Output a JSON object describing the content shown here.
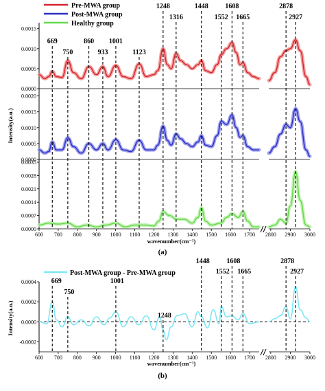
{
  "chart_data": [
    {
      "type": "line",
      "panel": "(a)",
      "legend": [
        {
          "name": "Pre-MWA group",
          "color": "#d6262e"
        },
        {
          "name": "Post-MWA group",
          "color": "#2b2fc2"
        },
        {
          "name": "Healthy group",
          "color": "#63d94a"
        }
      ],
      "xlabel": "wavenumber(cm⁻¹)",
      "ylabel": "Intensity(a.u.)",
      "xticks": [
        "600",
        "700",
        "800",
        "900",
        "1000",
        "1100",
        "1200",
        "1300",
        "1400",
        "1500",
        "1600",
        "1700",
        "2800",
        "2900",
        "3000"
      ],
      "xlim_segments": [
        [
          600,
          1750
        ],
        [
          2790,
          3000
        ]
      ],
      "peaks": [
        669,
        750,
        860,
        933,
        1001,
        1123,
        1248,
        1316,
        1448,
        1552,
        1608,
        1665,
        2878,
        2927
      ],
      "peak_labels": [
        "669",
        "750",
        "860",
        "933",
        "1001",
        "1123",
        "1248",
        "1316",
        "1448",
        "1552",
        "1608",
        "1665",
        "2878",
        "2927"
      ],
      "subplots": [
        {
          "series": "Pre-MWA group",
          "color": "#d6262e",
          "band_color": "#f08f8f",
          "yticks": [
            "0.0015",
            "0.0010",
            "0.0005",
            "0.0000"
          ],
          "ylim": [
            0,
            0.00165
          ],
          "x": [
            600,
            630,
            650,
            669,
            690,
            720,
            750,
            780,
            820,
            860,
            900,
            933,
            960,
            1001,
            1040,
            1080,
            1123,
            1160,
            1200,
            1220,
            1248,
            1270,
            1290,
            1316,
            1340,
            1370,
            1400,
            1430,
            1448,
            1470,
            1500,
            1530,
            1552,
            1580,
            1608,
            1630,
            1650,
            1665,
            1690,
            1720,
            1750
          ],
          "values": [
            0.00035,
            0.00025,
            0.0003,
            0.00043,
            0.0003,
            0.00028,
            0.0007,
            0.0004,
            0.00025,
            0.00055,
            0.00035,
            0.00055,
            0.0003,
            0.00058,
            0.0003,
            0.00025,
            0.00062,
            0.0003,
            0.00035,
            0.00045,
            0.001,
            0.0006,
            0.0005,
            0.00088,
            0.0007,
            0.0006,
            0.0005,
            0.0006,
            0.0007,
            0.00045,
            0.0004,
            0.0006,
            0.00085,
            0.001,
            0.00115,
            0.0009,
            0.0006,
            0.00065,
            0.0004,
            0.0003,
            0.00025
          ],
          "x2": [
            2790,
            2820,
            2850,
            2878,
            2900,
            2927,
            2950,
            2980,
            3000
          ],
          "values2": [
            0.0002,
            0.0004,
            0.0008,
            0.00095,
            0.001,
            0.00122,
            0.00095,
            0.0003,
            0.0001
          ]
        },
        {
          "series": "Post-MWA group",
          "color": "#2b2fc2",
          "band_color": "#8f92ea",
          "yticks": [
            "0.0020",
            "0.0015",
            "0.0010",
            "0.0005",
            "0.0000"
          ],
          "ylim": [
            0,
            0.0021
          ],
          "x": [
            600,
            630,
            650,
            669,
            690,
            720,
            750,
            780,
            820,
            860,
            900,
            933,
            960,
            1001,
            1040,
            1080,
            1123,
            1160,
            1200,
            1220,
            1248,
            1270,
            1290,
            1316,
            1340,
            1370,
            1400,
            1430,
            1448,
            1470,
            1500,
            1530,
            1552,
            1580,
            1608,
            1630,
            1650,
            1665,
            1690,
            1720,
            1750
          ],
          "values": [
            0.0003,
            0.0002,
            0.00025,
            0.00055,
            0.0003,
            0.0003,
            0.00068,
            0.0004,
            0.0002,
            0.0005,
            0.0003,
            0.0005,
            0.0003,
            0.00062,
            0.0003,
            0.00025,
            0.0006,
            0.0003,
            0.0003,
            0.00045,
            0.00105,
            0.0006,
            0.00045,
            0.0008,
            0.00065,
            0.0005,
            0.0004,
            0.00055,
            0.00075,
            0.00045,
            0.0004,
            0.00075,
            0.0012,
            0.0011,
            0.0014,
            0.001,
            0.0007,
            0.00075,
            0.0004,
            0.0003,
            0.0003
          ],
          "x2": [
            2790,
            2820,
            2850,
            2878,
            2900,
            2927,
            2950,
            2980,
            3000
          ],
          "values2": [
            0.0002,
            0.0004,
            0.0008,
            0.0011,
            0.001,
            0.0016,
            0.0012,
            0.0003,
            0.0001
          ]
        },
        {
          "series": "Healthy group",
          "color": "#63d94a",
          "band_color": "#b9f0a8",
          "yticks": [
            "0.0035",
            "0.0028",
            "0.0021",
            "0.0014",
            "0.0007",
            "0.0000"
          ],
          "ylim": [
            0,
            0.0035
          ],
          "x": [
            600,
            650,
            700,
            750,
            800,
            850,
            900,
            950,
            1001,
            1050,
            1100,
            1150,
            1200,
            1225,
            1248,
            1280,
            1320,
            1360,
            1400,
            1430,
            1448,
            1470,
            1500,
            1550,
            1580,
            1608,
            1640,
            1665,
            1690,
            1720,
            1750
          ],
          "values": [
            0.0002,
            0.0003,
            0.00025,
            0.0003,
            0.0001,
            0.0002,
            0.0001,
            0.0002,
            0.0003,
            0.0001,
            0.0002,
            0.0002,
            0.00015,
            0.0004,
            0.0009,
            0.0007,
            0.0005,
            0.0005,
            0.0003,
            0.0006,
            0.0011,
            0.0004,
            0.0002,
            0.0003,
            0.0006,
            0.0008,
            0.0006,
            0.0009,
            0.0004,
            0.0001,
            0.0001
          ],
          "x2": [
            2790,
            2820,
            2850,
            2878,
            2900,
            2927,
            2950,
            2980,
            3000
          ],
          "values2": [
            0.0001,
            0.0002,
            0.0005,
            0.0003,
            0.0012,
            0.003,
            0.0015,
            0.0002,
            0.0001
          ]
        }
      ]
    },
    {
      "type": "line",
      "panel": "(b)",
      "legend": [
        {
          "name": "Post-MWA group - Pre-MWA group",
          "color": "#7ee8f4"
        }
      ],
      "xlabel": "wavenumber(cm⁻¹)",
      "ylabel": "Intensity(a.u.)",
      "yticks": [
        "0.0004",
        "0.0002",
        "0.0000",
        "-0.0002"
      ],
      "ylim": [
        -0.0003,
        0.0004
      ],
      "xticks": [
        "600",
        "700",
        "800",
        "900",
        "1000",
        "1100",
        "1200",
        "1300",
        "1400",
        "1500",
        "1600",
        "1700",
        "2800",
        "2900",
        "3000"
      ],
      "xlim_segments": [
        [
          600,
          1750
        ],
        [
          2790,
          3000
        ]
      ],
      "peaks": [
        669,
        750,
        1001,
        1248,
        1448,
        1552,
        1608,
        1665,
        2878,
        2927
      ],
      "peak_labels": [
        "669",
        "750",
        "1001",
        "1248",
        "1448",
        "1552",
        "1608",
        "1665",
        "2878",
        "2927"
      ],
      "zero_line": "dashed",
      "x": [
        600,
        640,
        669,
        690,
        720,
        750,
        780,
        820,
        860,
        900,
        940,
        970,
        1001,
        1040,
        1080,
        1120,
        1160,
        1200,
        1230,
        1248,
        1265,
        1290,
        1320,
        1360,
        1400,
        1430,
        1448,
        1480,
        1510,
        1540,
        1552,
        1580,
        1608,
        1640,
        1665,
        1700,
        1750
      ],
      "values": [
        0.0,
        -2e-05,
        0.0002,
        2e-05,
        -5e-05,
        5e-05,
        -3e-05,
        2e-05,
        -4e-05,
        5e-05,
        -3e-05,
        4e-05,
        0.0001,
        -5e-05,
        5e-05,
        -3e-05,
        6e-05,
        -8e-05,
        5e-05,
        -8e-05,
        -0.00018,
        -5e-05,
        6e-05,
        8e-05,
        -5e-05,
        0.0001,
        5e-05,
        -6e-05,
        0.00012,
        -2e-05,
        0.00015,
        5e-05,
        6e-05,
        2e-05,
        8e-05,
        -2e-05,
        0.0
      ],
      "x2": [
        2790,
        2820,
        2850,
        2878,
        2900,
        2927,
        2950,
        2980,
        3000
      ],
      "values2": [
        0.0,
        3e-05,
        6e-05,
        0.00015,
        3e-05,
        0.00035,
        0.00012,
        4e-05,
        0.0
      ]
    }
  ]
}
